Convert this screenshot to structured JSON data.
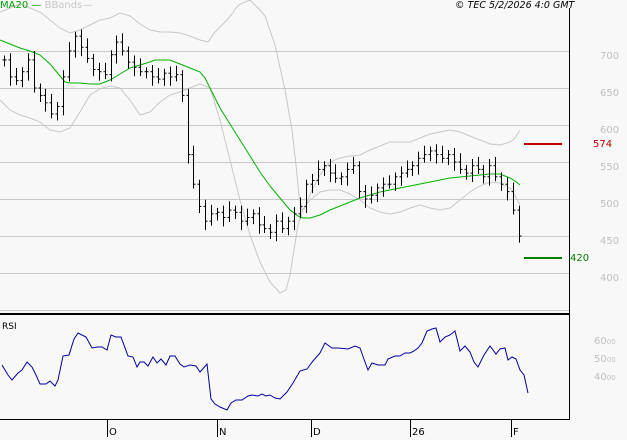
{
  "header": {
    "legend_ma": "MA20",
    "legend_bbands": "BBands",
    "copyright": "© TEC 5/2/2026 4:0 GMT"
  },
  "colors": {
    "background": "#f8f8f8",
    "grid": "#c8c8c8",
    "ma": "#00b000",
    "bbands": "#c8c8c8",
    "bars": "#000000",
    "resistance": "#c00000",
    "support": "#008000",
    "rsi": "#0000a0"
  },
  "levels": {
    "resistance": {
      "value": "574",
      "label": "574"
    },
    "support": {
      "value": "420",
      "label": "420"
    }
  },
  "price_axis": {
    "ticks": [
      "700",
      "650",
      "600",
      "550",
      "500",
      "450",
      "400"
    ]
  },
  "rsi_panel": {
    "label": "RSI",
    "ticks": [
      {
        "main": "60",
        "sup": "00"
      },
      {
        "main": "50",
        "sup": "00"
      },
      {
        "main": "40",
        "sup": "00"
      }
    ]
  },
  "x_axis": {
    "ticks": [
      "O",
      "N",
      "D",
      "26",
      "F"
    ]
  },
  "chart_data": [
    {
      "type": "ohlc",
      "title": "Price with MA20 and Bollinger Bands",
      "xlabel": "",
      "ylabel": "",
      "ylim": [
        380,
        760
      ],
      "grid": true,
      "legend": [
        "MA20",
        "BBands"
      ],
      "legend_position": "top-left",
      "x_ticks": [
        "O",
        "N",
        "D",
        "26",
        "F"
      ],
      "y_ticks": [
        400,
        450,
        500,
        550,
        600,
        650,
        700
      ],
      "horizontal_lines": [
        {
          "name": "resistance",
          "value": 574,
          "color": "#c00000"
        },
        {
          "name": "support",
          "value": 420,
          "color": "#008000"
        }
      ],
      "close_series": [
        688,
        665,
        660,
        672,
        688,
        650,
        640,
        630,
        615,
        625,
        665,
        700,
        720,
        705,
        690,
        675,
        672,
        668,
        695,
        712,
        700,
        685,
        678,
        672,
        672,
        665,
        662,
        670,
        665,
        668,
        640,
        560,
        520,
        490,
        470,
        480,
        482,
        475,
        485,
        482,
        470,
        475,
        480,
        465,
        460,
        455,
        470,
        460,
        470,
        480,
        490,
        520,
        525,
        540,
        545,
        535,
        528,
        530,
        540,
        545,
        510,
        500,
        505,
        515,
        520,
        520,
        530,
        535,
        540,
        545,
        555,
        560,
        565,
        560,
        555,
        560,
        550,
        540,
        535,
        545,
        540,
        530,
        545,
        530,
        520,
        510,
        485,
        450
      ],
      "ma20_series": [
        690,
        687,
        684,
        680,
        676,
        672,
        668,
        664,
        660,
        655,
        652,
        650,
        652,
        655,
        658,
        662,
        665,
        668,
        670,
        670,
        668,
        665,
        663,
        660,
        655,
        640,
        620,
        600,
        580,
        560,
        545,
        530,
        515,
        500,
        490,
        482,
        478,
        485,
        500,
        505,
        510,
        513,
        516,
        520,
        523,
        525,
        527,
        530,
        532,
        535,
        535,
        537,
        540,
        542,
        545,
        545,
        546,
        547,
        548,
        549,
        548,
        545
      ],
      "bb_upper_series": [
        725,
        710,
        700,
        705,
        720,
        735,
        740,
        730,
        720,
        728,
        745,
        760,
        760,
        755,
        750,
        735,
        720,
        700,
        690,
        650,
        600,
        560,
        520,
        505,
        510,
        520,
        535,
        548,
        548,
        545,
        540,
        545,
        552,
        560,
        565,
        565,
        568,
        570,
        574
      ],
      "bb_lower_series": [
        650,
        628,
        610,
        600,
        595,
        598,
        615,
        630,
        640,
        635,
        620,
        590,
        560,
        520,
        480,
        440,
        410,
        395,
        390,
        400,
        420,
        450,
        470,
        478,
        478,
        480,
        490,
        500,
        505,
        506,
        505,
        502,
        505,
        510,
        520,
        525,
        515,
        500,
        470
      ]
    },
    {
      "type": "line",
      "title": "RSI",
      "xlabel": "",
      "ylabel": "",
      "ylim": [
        20,
        80
      ],
      "grid": false,
      "y_ticks": [
        40,
        50,
        60
      ],
      "x_ticks": [
        "O",
        "N",
        "D",
        "26",
        "F"
      ],
      "series": [
        {
          "name": "RSI",
          "values": [
            52,
            46,
            44,
            47,
            49,
            54,
            51,
            45,
            42,
            42,
            43,
            41,
            46,
            62,
            62,
            71,
            74,
            72,
            67,
            66,
            68,
            64,
            71,
            70,
            66,
            60,
            58,
            52,
            56,
            51,
            57,
            54,
            50,
            58,
            57,
            52,
            51,
            51,
            49,
            54,
            37,
            33,
            30,
            28,
            35,
            35,
            38,
            36,
            37,
            35,
            33,
            39,
            45,
            49,
            52,
            57,
            64,
            61,
            62,
            60,
            61,
            59,
            48,
            52,
            51,
            53,
            57,
            59,
            61,
            63,
            72,
            76,
            75,
            70,
            72,
            74,
            67,
            70,
            64,
            56,
            61,
            65,
            60,
            64,
            55,
            53,
            42,
            36
          ]
        }
      ]
    }
  ]
}
